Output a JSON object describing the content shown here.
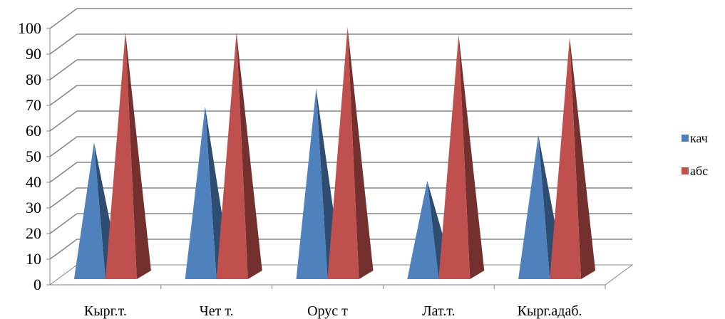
{
  "chart_data": {
    "type": "bar",
    "shape": "pyramid-3d",
    "categories": [
      "Кырг.т.",
      "Чет т.",
      "Орус т",
      "Лат.т.",
      "Кырг.адаб."
    ],
    "series": [
      {
        "name": "кач",
        "values": [
          55,
          69,
          76,
          40,
          58
        ],
        "color": "#4F81BD"
      },
      {
        "name": "абс",
        "values": [
          98,
          98,
          100,
          97,
          96
        ],
        "color": "#C0504D"
      }
    ],
    "ylim": [
      0,
      100
    ],
    "yticks": [
      "0",
      "10",
      "20",
      "30",
      "40",
      "50",
      "60",
      "70",
      "80",
      "90",
      "100"
    ],
    "grid": true,
    "legend": "right"
  }
}
